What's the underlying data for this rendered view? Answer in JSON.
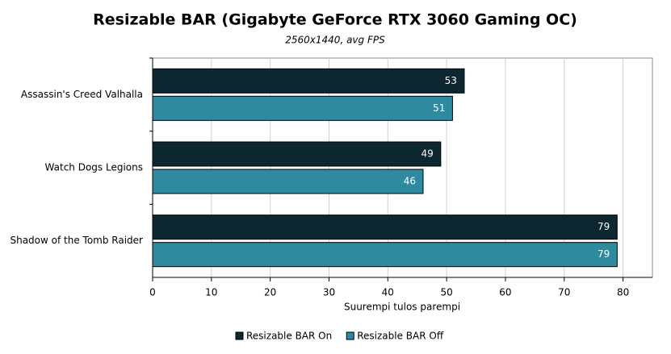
{
  "chart_data": {
    "type": "hbar",
    "title": "Resizable BAR (Gigabyte GeForce RTX 3060 Gaming OC)",
    "subtitle": "2560x1440, avg FPS",
    "x_label": "Suurempi tulos parempi",
    "categories": [
      "Assassin's Creed Valhalla",
      "Watch Dogs Legions",
      "Shadow of the Tomb Raider"
    ],
    "series": [
      {
        "name": "Resizable BAR On",
        "color": "#0c2730",
        "values": [
          53,
          49,
          79
        ]
      },
      {
        "name": "Resizable BAR Off",
        "color": "#2f8aa0",
        "values": [
          51,
          46,
          79
        ]
      }
    ],
    "xlim": [
      0,
      85
    ],
    "xticks": [
      0,
      10,
      20,
      30,
      40,
      50,
      60,
      70,
      80
    ],
    "grid": true,
    "legend": "bottom"
  }
}
